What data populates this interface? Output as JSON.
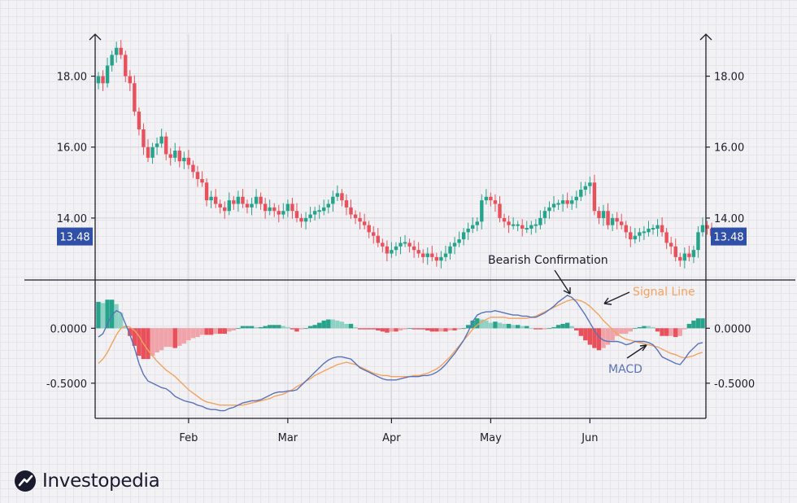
{
  "brand": {
    "name": "Investopedia"
  },
  "colors": {
    "up": "#26a38b",
    "down": "#e8505b",
    "up_light": "#8fd2c4",
    "down_light": "#f0a3a8",
    "macd": "#5a73b8",
    "signal": "#f2a35f",
    "badge": "#2f4fa8",
    "axis": "#1e1e2a"
  },
  "annotations": {
    "bearish": "Bearish Confirmation",
    "signal": "Signal Line",
    "macd": "MACD"
  },
  "chart_data": [
    {
      "type": "candlestick",
      "panel": "price",
      "current_price_label": "13.48",
      "y_ticks": [
        "14.00",
        "16.00",
        "18.00"
      ],
      "ylim": [
        12.3,
        19.0
      ],
      "x_ticks": [
        "Feb",
        "Mar",
        "Apr",
        "May",
        "Jun"
      ],
      "x_tick_days": [
        20,
        42,
        65,
        87,
        109
      ],
      "x_range": [
        0,
        134
      ],
      "close": [
        18.0,
        17.8,
        18.3,
        18.6,
        18.8,
        18.6,
        18.0,
        17.8,
        17.0,
        16.5,
        16.0,
        15.7,
        16.0,
        16.1,
        16.3,
        15.8,
        15.7,
        15.9,
        15.6,
        15.7,
        15.5,
        15.3,
        15.1,
        15.0,
        14.5,
        14.6,
        14.4,
        14.3,
        14.2,
        14.5,
        14.4,
        14.6,
        14.4,
        14.3,
        14.4,
        14.6,
        14.4,
        14.2,
        14.3,
        14.2,
        14.1,
        14.2,
        14.4,
        14.2,
        14.0,
        13.9,
        14.0,
        14.1,
        14.2,
        14.2,
        14.3,
        14.4,
        14.6,
        14.7,
        14.5,
        14.3,
        14.1,
        14.0,
        13.9,
        13.8,
        13.6,
        13.5,
        13.3,
        13.2,
        13.0,
        13.1,
        13.2,
        13.3,
        13.3,
        13.2,
        13.1,
        13.0,
        12.9,
        13.0,
        12.9,
        12.8,
        12.9,
        13.0,
        13.2,
        13.3,
        13.4,
        13.6,
        13.7,
        13.8,
        13.9,
        14.5,
        14.6,
        14.5,
        14.4,
        14.0,
        13.9,
        13.8,
        13.8,
        13.8,
        13.7,
        13.7,
        13.8,
        13.8,
        14.0,
        14.2,
        14.3,
        14.4,
        14.4,
        14.5,
        14.4,
        14.5,
        14.6,
        14.8,
        14.9,
        15.0,
        14.2,
        14.0,
        14.2,
        13.8,
        14.0,
        13.9,
        13.8,
        13.6,
        13.4,
        13.5,
        13.6,
        13.6,
        13.7,
        13.7,
        13.8,
        13.6,
        13.3,
        13.2,
        12.9,
        12.8,
        13.0,
        12.9,
        13.1,
        13.6,
        13.8,
        13.7,
        13.5
      ]
    },
    {
      "type": "macd",
      "panel": "indicator",
      "y_ticks": [
        "0.0000",
        "-0.5000"
      ],
      "ylim": [
        -0.82,
        0.38
      ],
      "macd": [
        -0.08,
        -0.05,
        0.04,
        0.12,
        0.16,
        0.14,
        0.04,
        -0.06,
        -0.18,
        -0.32,
        -0.42,
        -0.48,
        -0.5,
        -0.52,
        -0.54,
        -0.55,
        -0.58,
        -0.62,
        -0.64,
        -0.66,
        -0.67,
        -0.68,
        -0.7,
        -0.71,
        -0.73,
        -0.74,
        -0.74,
        -0.75,
        -0.75,
        -0.73,
        -0.72,
        -0.7,
        -0.68,
        -0.67,
        -0.66,
        -0.66,
        -0.65,
        -0.63,
        -0.61,
        -0.59,
        -0.58,
        -0.58,
        -0.57,
        -0.57,
        -0.56,
        -0.52,
        -0.48,
        -0.44,
        -0.4,
        -0.36,
        -0.32,
        -0.29,
        -0.27,
        -0.26,
        -0.26,
        -0.27,
        -0.28,
        -0.32,
        -0.36,
        -0.38,
        -0.4,
        -0.42,
        -0.44,
        -0.46,
        -0.47,
        -0.47,
        -0.47,
        -0.46,
        -0.45,
        -0.44,
        -0.44,
        -0.44,
        -0.43,
        -0.43,
        -0.42,
        -0.4,
        -0.37,
        -0.33,
        -0.28,
        -0.23,
        -0.17,
        -0.11,
        -0.03,
        0.06,
        0.12,
        0.14,
        0.15,
        0.15,
        0.16,
        0.15,
        0.14,
        0.13,
        0.12,
        0.12,
        0.11,
        0.11,
        0.1,
        0.1,
        0.12,
        0.14,
        0.17,
        0.2,
        0.24,
        0.27,
        0.3,
        0.28,
        0.24,
        0.18,
        0.12,
        0.05,
        -0.02,
        -0.08,
        -0.11,
        -0.12,
        -0.12,
        -0.12,
        -0.13,
        -0.15,
        -0.14,
        -0.12,
        -0.12,
        -0.12,
        -0.13,
        -0.15,
        -0.2,
        -0.26,
        -0.28,
        -0.3,
        -0.32,
        -0.33,
        -0.28,
        -0.22,
        -0.18,
        -0.14,
        -0.13
      ],
      "signal": [
        -0.32,
        -0.28,
        -0.22,
        -0.14,
        -0.06,
        0.0,
        0.02,
        0.01,
        -0.02,
        -0.07,
        -0.14,
        -0.2,
        -0.25,
        -0.3,
        -0.34,
        -0.38,
        -0.41,
        -0.44,
        -0.48,
        -0.52,
        -0.56,
        -0.59,
        -0.62,
        -0.65,
        -0.67,
        -0.68,
        -0.69,
        -0.7,
        -0.7,
        -0.7,
        -0.7,
        -0.7,
        -0.7,
        -0.69,
        -0.68,
        -0.67,
        -0.66,
        -0.65,
        -0.64,
        -0.62,
        -0.61,
        -0.6,
        -0.58,
        -0.56,
        -0.53,
        -0.51,
        -0.48,
        -0.46,
        -0.43,
        -0.41,
        -0.39,
        -0.37,
        -0.35,
        -0.33,
        -0.32,
        -0.31,
        -0.32,
        -0.33,
        -0.35,
        -0.37,
        -0.39,
        -0.41,
        -0.42,
        -0.43,
        -0.43,
        -0.44,
        -0.44,
        -0.44,
        -0.44,
        -0.44,
        -0.43,
        -0.43,
        -0.42,
        -0.41,
        -0.39,
        -0.37,
        -0.34,
        -0.3,
        -0.26,
        -0.21,
        -0.16,
        -0.11,
        -0.06,
        -0.01,
        0.03,
        0.06,
        0.08,
        0.1,
        0.1,
        0.1,
        0.1,
        0.09,
        0.09,
        0.09,
        0.09,
        0.09,
        0.1,
        0.11,
        0.13,
        0.15,
        0.17,
        0.19,
        0.21,
        0.23,
        0.25,
        0.26,
        0.26,
        0.25,
        0.23,
        0.2,
        0.16,
        0.12,
        0.07,
        0.03,
        -0.01,
        -0.05,
        -0.08,
        -0.1,
        -0.11,
        -0.12,
        -0.13,
        -0.14,
        -0.15,
        -0.16,
        -0.17,
        -0.19,
        -0.21,
        -0.23,
        -0.24,
        -0.26,
        -0.27,
        -0.26,
        -0.25,
        -0.23,
        -0.22
      ]
    }
  ]
}
